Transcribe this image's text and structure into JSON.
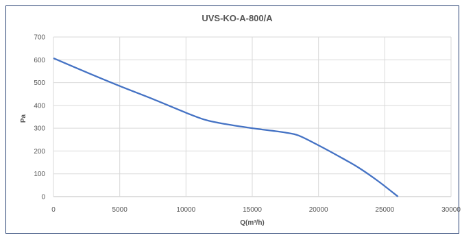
{
  "chart_data": {
    "type": "line",
    "title": "UVS-KO-A-800/A",
    "xlabel": "Q(m³/h)",
    "ylabel": "Pa",
    "xlim": [
      0,
      30000
    ],
    "ylim": [
      0,
      700
    ],
    "x_ticks": [
      "0",
      "5000",
      "10000",
      "15000",
      "20000",
      "25000",
      "30000"
    ],
    "y_ticks": [
      "0",
      "100",
      "200",
      "300",
      "400",
      "500",
      "600",
      "700"
    ],
    "grid": true,
    "legend": "none",
    "line_color": "#4472c4",
    "series": [
      {
        "x": [
          0,
          2500,
          5000,
          7500,
          10000,
          11500,
          13000,
          15000,
          16500,
          17500,
          18500,
          20000,
          21500,
          23000,
          24500,
          26000
        ],
        "values": [
          607,
          545,
          485,
          428,
          368,
          336,
          318,
          300,
          289,
          281,
          268,
          225,
          178,
          128,
          68,
          0
        ]
      }
    ]
  }
}
